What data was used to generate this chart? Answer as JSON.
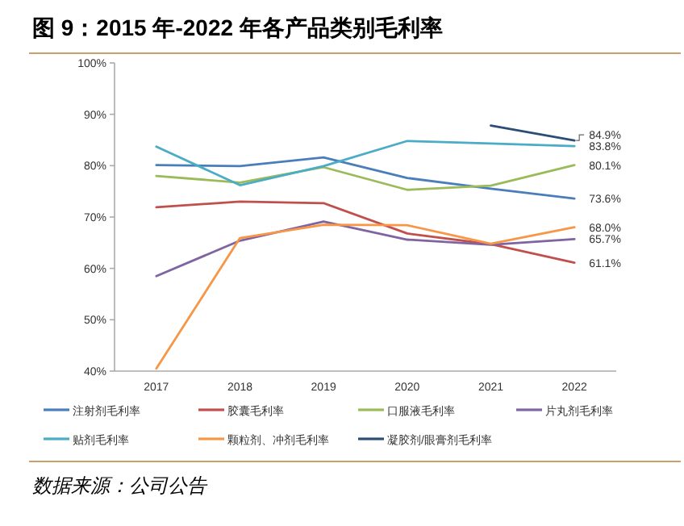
{
  "chart_data": {
    "type": "line",
    "title": "图 9：2015 年-2022 年各产品类别毛利率",
    "categories": [
      "2017",
      "2018",
      "2019",
      "2020",
      "2021",
      "2022"
    ],
    "ylim": [
      40,
      100
    ],
    "yticks": [
      {
        "value": 40,
        "label": "40%"
      },
      {
        "value": 50,
        "label": "50%"
      },
      {
        "value": 60,
        "label": "60%"
      },
      {
        "value": 70,
        "label": "70%"
      },
      {
        "value": 80,
        "label": "80%"
      },
      {
        "value": 90,
        "label": "90%"
      },
      {
        "value": 100,
        "label": "100%"
      }
    ],
    "legend": "bottom",
    "marker": "none",
    "line_style": "solid",
    "grid": false,
    "series": [
      {
        "name": "注射剂毛利率",
        "color": "#4a7ebb",
        "values": [
          80.1,
          79.9,
          81.6,
          77.6,
          75.5,
          73.6
        ],
        "value_labels": [
          null,
          null,
          null,
          null,
          null,
          "73.6%"
        ]
      },
      {
        "name": "胶囊毛利率",
        "color": "#c0504d",
        "values": [
          71.9,
          73.0,
          72.7,
          66.8,
          64.7,
          61.1
        ],
        "value_labels": [
          null,
          null,
          null,
          null,
          null,
          "61.1%"
        ]
      },
      {
        "name": "口服液毛利率",
        "color": "#9bbb59",
        "values": [
          78.0,
          76.7,
          79.7,
          75.3,
          76.1,
          80.1
        ],
        "value_labels": [
          null,
          null,
          null,
          null,
          null,
          "80.1%"
        ]
      },
      {
        "name": "片丸剂毛利率",
        "color": "#8064a2",
        "values": [
          58.5,
          65.4,
          69.1,
          65.6,
          64.6,
          65.7
        ],
        "value_labels": [
          null,
          null,
          null,
          null,
          null,
          "65.7%"
        ]
      },
      {
        "name": "贴剂毛利率",
        "color": "#4bacc6",
        "values": [
          83.7,
          76.2,
          79.9,
          84.8,
          84.3,
          83.8
        ],
        "value_labels": [
          null,
          null,
          null,
          null,
          null,
          "83.8%"
        ]
      },
      {
        "name": "颗粒剂、冲剂毛利率",
        "color": "#f79646",
        "values": [
          40.5,
          65.9,
          68.5,
          68.4,
          64.8,
          68.0
        ],
        "value_labels": [
          null,
          null,
          null,
          null,
          null,
          "68.0%"
        ]
      },
      {
        "name": "凝胶剂/眼膏剂毛利率",
        "color": "#2c4d75",
        "values": [
          null,
          null,
          null,
          null,
          87.8,
          84.9
        ],
        "value_labels": [
          null,
          null,
          null,
          null,
          null,
          "84.9%"
        ]
      }
    ],
    "annotations": [
      "数据来源：公司公告"
    ]
  }
}
